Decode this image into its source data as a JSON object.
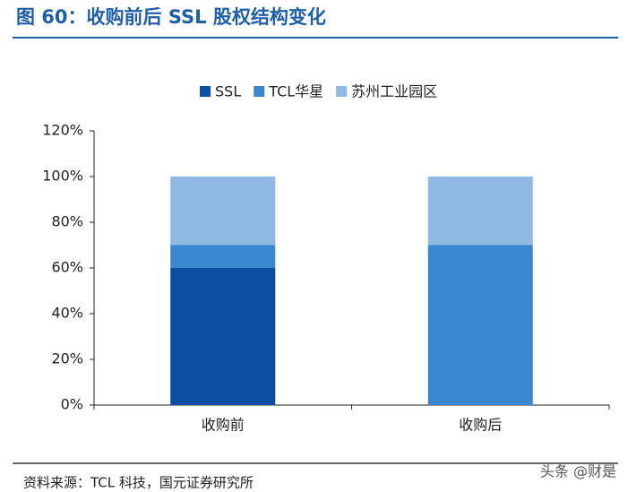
{
  "title": "图 60：收购前后 SSL 股权结构变化",
  "chart_data": {
    "type": "stacked_bar",
    "categories": [
      "收购前",
      "收购后"
    ],
    "series": [
      {
        "name": "SSL",
        "color": "#0b4ea2",
        "values": [
          60,
          0
        ]
      },
      {
        "name": "TCL华星",
        "color": "#3a87d0",
        "values": [
          10,
          70
        ]
      },
      {
        "name": "苏州工业园区",
        "color": "#8fb9e3",
        "values": [
          30,
          30
        ]
      }
    ],
    "ylim": [
      0,
      120
    ],
    "yticks": [
      {
        "value": 0,
        "label": "0%"
      },
      {
        "value": 20,
        "label": "20%"
      },
      {
        "value": 40,
        "label": "40%"
      },
      {
        "value": 60,
        "label": "60%"
      },
      {
        "value": 80,
        "label": "80%"
      },
      {
        "value": 100,
        "label": "100%"
      },
      {
        "value": 120,
        "label": "120%"
      }
    ],
    "legend": "top"
  },
  "source": "资料来源：TCL 科技，国元证券研究所",
  "watermark": "头条 @财是"
}
